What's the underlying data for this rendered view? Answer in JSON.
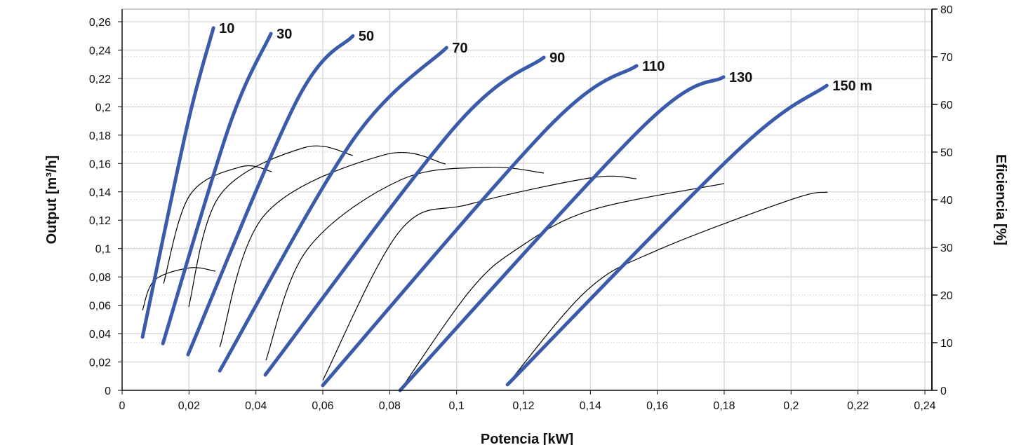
{
  "chart_data": {
    "type": "line",
    "xlabel": "Potencia [kW]",
    "ylabel": "Output [m³/h]",
    "y2label": "Eficiencia [%]",
    "xlim": [
      0,
      0.242
    ],
    "ylim": [
      0,
      0.268
    ],
    "y2lim": [
      0,
      80
    ],
    "grid": true,
    "x_ticks": [
      "0",
      "0,02",
      "0,04",
      "0,06",
      "0,08",
      "0,1",
      "0,12",
      "0,14",
      "0,16",
      "0,18",
      "0,2",
      "0,22",
      "0,24"
    ],
    "y_ticks": [
      "0",
      "0,02",
      "0,04",
      "0,06",
      "0,08",
      "0,1",
      "0,12",
      "0,14",
      "0,16",
      "0,18",
      "0,2",
      "0,22",
      "0,24",
      "0,26"
    ],
    "y2_ticks": [
      "0",
      "10",
      "20",
      "30",
      "40",
      "50",
      "60",
      "70",
      "80"
    ],
    "colors": {
      "output": "#3a5ba9",
      "efficiency": "#000000"
    },
    "output_series": [
      {
        "label": "10",
        "points": [
          [
            0.0061,
            0.0376
          ],
          [
            0.0195,
            0.1869
          ],
          [
            0.0273,
            0.2556
          ]
        ]
      },
      {
        "label": "30",
        "points": [
          [
            0.0122,
            0.033
          ],
          [
            0.0321,
            0.1869
          ],
          [
            0.0445,
            0.2516
          ]
        ]
      },
      {
        "label": "50",
        "points": [
          [
            0.0197,
            0.0252
          ],
          [
            0.0523,
            0.2047
          ],
          [
            0.069,
            0.25
          ]
        ]
      },
      {
        "label": "70",
        "points": [
          [
            0.0292,
            0.0138
          ],
          [
            0.069,
            0.1765
          ],
          [
            0.097,
            0.2417
          ]
        ]
      },
      {
        "label": "90",
        "points": [
          [
            0.0428,
            0.0109
          ],
          [
            0.0999,
            0.1869
          ],
          [
            0.1261,
            0.2348
          ]
        ]
      },
      {
        "label": "110",
        "points": [
          [
            0.06,
            0.0035
          ],
          [
            0.128,
            0.1869
          ],
          [
            0.1538,
            0.2289
          ]
        ]
      },
      {
        "label": "130",
        "points": [
          [
            0.0831,
            0.0
          ],
          [
            0.1561,
            0.1869
          ],
          [
            0.1798,
            0.221
          ]
        ]
      },
      {
        "label": "150 m",
        "points": [
          [
            0.1152,
            0.004
          ],
          [
            0.1842,
            0.1695
          ],
          [
            0.2107,
            0.215
          ]
        ]
      }
    ],
    "efficiency_series": [
      {
        "points": [
          [
            0.0061,
            16.8
          ],
          [
            0.0097,
            23.1
          ],
          [
            0.0202,
            25.7
          ],
          [
            0.0279,
            25.0
          ]
        ]
      },
      {
        "points": [
          [
            0.0124,
            22.4
          ],
          [
            0.0202,
            40.9
          ],
          [
            0.0355,
            46.9
          ],
          [
            0.0447,
            45.9
          ]
        ]
      },
      {
        "points": [
          [
            0.0199,
            17.5
          ],
          [
            0.0292,
            40.9
          ],
          [
            0.0543,
            50.9
          ],
          [
            0.069,
            49.3
          ]
        ]
      },
      {
        "points": [
          [
            0.0292,
            9.1
          ],
          [
            0.0426,
            36.8
          ],
          [
            0.0783,
            49.4
          ],
          [
            0.0967,
            47.5
          ]
        ]
      },
      {
        "points": [
          [
            0.043,
            6.3
          ],
          [
            0.0552,
            29.4
          ],
          [
            0.0831,
            44.1
          ],
          [
            0.1093,
            46.8
          ],
          [
            0.1261,
            45.6
          ]
        ]
      },
      {
        "points": [
          [
            0.06,
            2.1
          ],
          [
            0.0831,
            33.5
          ],
          [
            0.1041,
            39.1
          ],
          [
            0.1402,
            44.6
          ],
          [
            0.1538,
            44.4
          ]
        ]
      },
      {
        "points": [
          [
            0.0831,
            0.0
          ],
          [
            0.1041,
            21.0
          ],
          [
            0.1186,
            29.9
          ],
          [
            0.1402,
            37.8
          ],
          [
            0.18,
            43.4
          ]
        ]
      },
      {
        "points": [
          [
            0.1151,
            1.2
          ],
          [
            0.139,
            21.0
          ],
          [
            0.16,
            29.4
          ],
          [
            0.2003,
            40.1
          ],
          [
            0.2109,
            41.6
          ]
        ]
      }
    ]
  }
}
